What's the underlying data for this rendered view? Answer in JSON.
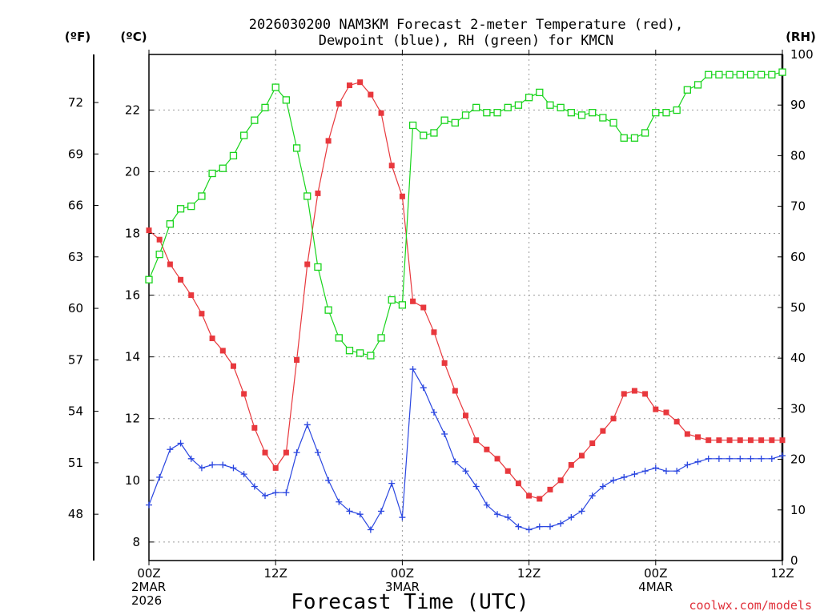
{
  "title_line1": "2026030200 NAM3KM Forecast 2-meter Temperature (red),",
  "title_line2": "Dewpoint (blue), RH (green) for KMCN",
  "unit_f": "(ºF)",
  "unit_c": "(ºC)",
  "unit_rh": "(RH)",
  "x_axis_title": "Forecast Time (UTC)",
  "credit": "coolwx.com/models",
  "colors": {
    "temp": "#e8383d",
    "dew": "#2a46e0",
    "rh": "#19d41c",
    "grid": "#9a9a9a"
  },
  "chart_data": {
    "type": "line",
    "x_unit": "forecast hour (UTC, from 2026-03-02 00Z)",
    "xlim": [
      0,
      60
    ],
    "x_ticks": [
      {
        "hour": 0,
        "lines": [
          "00Z",
          "2MAR",
          "2026"
        ]
      },
      {
        "hour": 12,
        "lines": [
          "12Z"
        ]
      },
      {
        "hour": 24,
        "lines": [
          "00Z",
          "3MAR"
        ]
      },
      {
        "hour": 36,
        "lines": [
          "12Z"
        ]
      },
      {
        "hour": 48,
        "lines": [
          "00Z",
          "4MAR"
        ]
      },
      {
        "hour": 60,
        "lines": [
          "12Z"
        ]
      }
    ],
    "y_left_c": {
      "label": "(ºC)",
      "range": [
        7.4,
        23.8
      ],
      "ticks": [
        8,
        10,
        12,
        14,
        16,
        18,
        20,
        22
      ]
    },
    "y_left_f": {
      "label": "(ºF)",
      "range": [
        45.3,
        74.8
      ],
      "ticks": [
        48,
        51,
        54,
        57,
        60,
        63,
        66,
        69,
        72
      ]
    },
    "y_right_rh": {
      "label": "(RH)",
      "range": [
        0,
        100
      ],
      "ticks": [
        0,
        10,
        20,
        30,
        40,
        50,
        60,
        70,
        80,
        90,
        100
      ]
    },
    "series": [
      {
        "name": "2-meter Temperature",
        "color": "red",
        "marker": "filled-square",
        "unit": "C",
        "x": [
          0,
          1,
          2,
          3,
          4,
          5,
          6,
          7,
          8,
          9,
          10,
          11,
          12,
          13,
          14,
          15,
          16,
          17,
          18,
          19,
          20,
          21,
          22,
          23,
          24,
          25,
          26,
          27,
          28,
          29,
          30,
          31,
          32,
          33,
          34,
          35,
          36,
          37,
          38,
          39,
          40,
          41,
          42,
          43,
          44,
          45,
          46,
          47,
          48,
          49,
          50,
          51,
          52,
          53,
          54,
          55,
          56,
          57,
          58,
          59,
          60
        ],
        "values": [
          18.1,
          17.8,
          17.0,
          16.5,
          16.0,
          15.4,
          14.6,
          14.2,
          13.7,
          12.8,
          11.7,
          10.9,
          10.4,
          10.9,
          13.9,
          17.0,
          19.3,
          21.0,
          22.2,
          22.8,
          22.9,
          22.5,
          21.9,
          20.2,
          19.2,
          15.8,
          15.6,
          14.8,
          13.8,
          12.9,
          12.1,
          11.3,
          11.0,
          10.7,
          10.3,
          9.9,
          9.5,
          9.4,
          9.7,
          10.0,
          10.5,
          10.8,
          11.2,
          11.6,
          12.0,
          12.8,
          12.9,
          12.8,
          12.3,
          12.2,
          11.9,
          11.5,
          11.4,
          11.3,
          11.3,
          11.3,
          11.3,
          11.3,
          11.3,
          11.3,
          11.3
        ]
      },
      {
        "name": "Dewpoint",
        "color": "blue",
        "marker": "plus",
        "unit": "C",
        "x": [
          0,
          1,
          2,
          3,
          4,
          5,
          6,
          7,
          8,
          9,
          10,
          11,
          12,
          13,
          14,
          15,
          16,
          17,
          18,
          19,
          20,
          21,
          22,
          23,
          24,
          25,
          26,
          27,
          28,
          29,
          30,
          31,
          32,
          33,
          34,
          35,
          36,
          37,
          38,
          39,
          40,
          41,
          42,
          43,
          44,
          45,
          46,
          47,
          48,
          49,
          50,
          51,
          52,
          53,
          54,
          55,
          56,
          57,
          58,
          59,
          60
        ],
        "values": [
          9.2,
          10.1,
          11.0,
          11.2,
          10.7,
          10.4,
          10.5,
          10.5,
          10.4,
          10.2,
          9.8,
          9.5,
          9.6,
          9.6,
          10.9,
          11.8,
          10.9,
          10.0,
          9.3,
          9.0,
          8.9,
          8.4,
          9.0,
          9.9,
          8.8,
          13.6,
          13.0,
          12.2,
          11.5,
          10.6,
          10.3,
          9.8,
          9.2,
          8.9,
          8.8,
          8.5,
          8.4,
          8.5,
          8.5,
          8.6,
          8.8,
          9.0,
          9.5,
          9.8,
          10.0,
          10.1,
          10.2,
          10.3,
          10.4,
          10.3,
          10.3,
          10.5,
          10.6,
          10.7,
          10.7,
          10.7,
          10.7,
          10.7,
          10.7,
          10.7,
          10.8
        ]
      },
      {
        "name": "Relative Humidity",
        "color": "green",
        "marker": "open-square",
        "unit": "%",
        "x": [
          0,
          1,
          2,
          3,
          4,
          5,
          6,
          7,
          8,
          9,
          10,
          11,
          12,
          13,
          14,
          15,
          16,
          17,
          18,
          19,
          20,
          21,
          22,
          23,
          24,
          25,
          26,
          27,
          28,
          29,
          30,
          31,
          32,
          33,
          34,
          35,
          36,
          37,
          38,
          39,
          40,
          41,
          42,
          43,
          44,
          45,
          46,
          47,
          48,
          49,
          50,
          51,
          52,
          53,
          54,
          55,
          56,
          57,
          58,
          59,
          60
        ],
        "values": [
          55.5,
          60.5,
          66.5,
          69.5,
          70.0,
          72.0,
          76.5,
          77.5,
          80.0,
          84.0,
          87.0,
          89.5,
          93.5,
          91.0,
          81.5,
          72.0,
          58.0,
          49.5,
          44.0,
          41.5,
          41.0,
          40.5,
          44.0,
          51.5,
          50.5,
          86.0,
          84.0,
          84.5,
          87.0,
          86.5,
          88.0,
          89.5,
          88.5,
          88.5,
          89.5,
          90.0,
          91.5,
          92.5,
          90.0,
          89.5,
          88.5,
          88.0,
          88.5,
          87.5,
          86.5,
          83.5,
          83.5,
          84.5,
          88.5,
          88.5,
          89.0,
          93.0,
          94.0,
          96.0,
          96.0,
          96.0,
          96.0,
          96.0,
          96.0,
          96.0,
          96.5
        ]
      }
    ]
  }
}
